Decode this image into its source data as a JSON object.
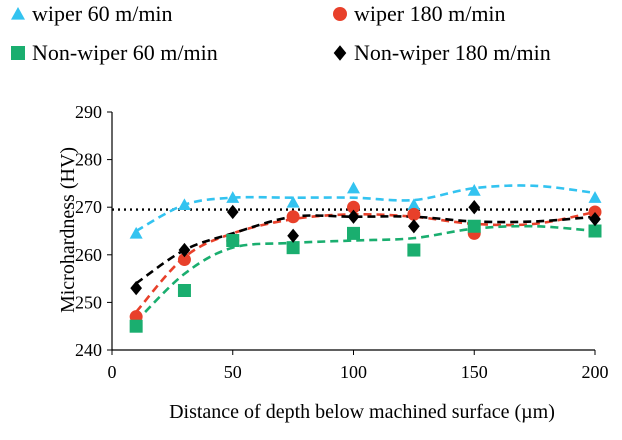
{
  "chart_data": {
    "type": "scatter",
    "title": "",
    "xlabel": "Distance of depth below machined  surface (µm)",
    "ylabel": "Microhardness (HV)",
    "xlim": [
      0,
      200
    ],
    "ylim": [
      240,
      290
    ],
    "x_ticks": [
      0,
      50,
      100,
      150,
      200
    ],
    "y_ticks": [
      240,
      250,
      260,
      270,
      280,
      290
    ],
    "grid": false,
    "legend_position": "top",
    "reference_line": {
      "y": 269.5,
      "style": "dotted",
      "color": "#000000"
    },
    "series": [
      {
        "name": "wiper 60 m/min",
        "marker": "triangle",
        "color": "#33c3f0",
        "x": [
          10,
          30,
          50,
          75,
          100,
          125,
          150,
          200
        ],
        "y": [
          264.5,
          270.5,
          272,
          271,
          274,
          270.5,
          273.5,
          272
        ],
        "trend_y": [
          265,
          270.5,
          272,
          272,
          272,
          271.5,
          274,
          274.5,
          273
        ]
      },
      {
        "name": "wiper 180 m/min",
        "marker": "circle",
        "color": "#e8402a",
        "x": [
          10,
          30,
          50,
          75,
          100,
          125,
          150,
          200
        ],
        "y": [
          247,
          259,
          263,
          268,
          270,
          268.5,
          264.5,
          269
        ],
        "trend_y": [
          248,
          259.5,
          264.5,
          267.5,
          268.5,
          268,
          266.5,
          266.5,
          269
        ]
      },
      {
        "name": "Non-wiper 60 m/min",
        "marker": "square",
        "color": "#1aae6f",
        "x": [
          10,
          30,
          50,
          75,
          100,
          125,
          150,
          200
        ],
        "y": [
          245,
          252.5,
          263,
          261.5,
          264.5,
          261,
          266,
          265
        ],
        "trend_y": [
          246,
          256,
          261.5,
          262.5,
          263,
          263.5,
          265.5,
          266,
          265
        ]
      },
      {
        "name": "Non-wiper 180 m/min",
        "marker": "diamond",
        "color": "#000000",
        "x": [
          10,
          30,
          50,
          75,
          100,
          125,
          150,
          200
        ],
        "y": [
          253,
          261,
          269,
          264,
          268,
          266,
          270,
          267.5
        ],
        "trend_y": [
          254,
          261,
          264.5,
          268,
          268,
          268,
          267,
          267,
          268
        ]
      }
    ],
    "trend_x": [
      10,
      30,
      50,
      75,
      100,
      125,
      150,
      175,
      200
    ]
  }
}
